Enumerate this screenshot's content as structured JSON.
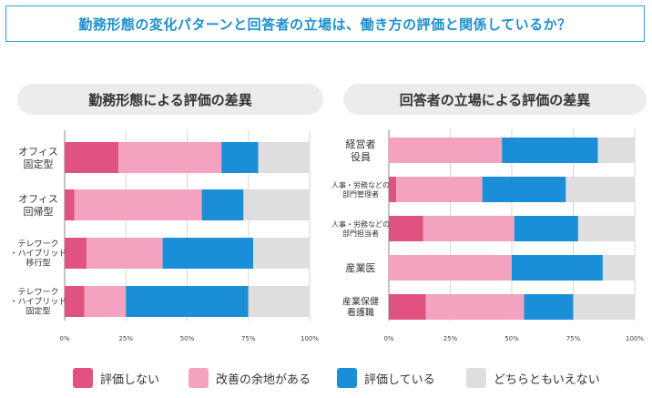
{
  "header": {
    "title": "勤務形態の変化パターンと回答者の立場は、働き方の評価と関係しているか？"
  },
  "colors": {
    "not_evaluate": "#e0527f",
    "room_for_improvement": "#f3a3c0",
    "evaluate": "#1a8fd8",
    "neutral": "#dedede"
  },
  "legend": [
    {
      "label": "評価しない",
      "color": "#e0527f"
    },
    {
      "label": "改善の余地がある",
      "color": "#f3a3c0"
    },
    {
      "label": "評価している",
      "color": "#1a8fd8"
    },
    {
      "label": "どちらともいえない",
      "color": "#dedede"
    }
  ],
  "chart_data": [
    {
      "type": "bar",
      "orientation": "horizontal-stacked-100",
      "title": "勤務形態による評価の差異",
      "categories": [
        [
          "オフィス",
          "固定型"
        ],
        [
          "オフィス",
          "回帰型"
        ],
        [
          "テレワーク",
          "・ハイブリッド",
          "移行型"
        ],
        [
          "テレワーク",
          "・ハイブリッド",
          "固定型"
        ]
      ],
      "series": [
        {
          "name": "評価しない",
          "values": [
            22,
            4,
            9,
            8
          ]
        },
        {
          "name": "改善の余地がある",
          "values": [
            42,
            52,
            31,
            17
          ]
        },
        {
          "name": "評価している",
          "values": [
            15,
            17,
            37,
            50
          ]
        },
        {
          "name": "どちらともいえない",
          "values": [
            21,
            27,
            23,
            25
          ]
        }
      ],
      "xticks": [
        "0%",
        "25%",
        "50%",
        "75%",
        "100%"
      ],
      "xlim": [
        0,
        100
      ]
    },
    {
      "type": "bar",
      "orientation": "horizontal-stacked-100",
      "title": "回答者の立場による評価の差異",
      "categories": [
        [
          "経営者",
          "役員"
        ],
        [
          "人事・労務などの",
          "部門管理者"
        ],
        [
          "人事・労務などの",
          "部門担当者"
        ],
        [
          "産業医"
        ],
        [
          "産業保健",
          "看護職"
        ]
      ],
      "series": [
        {
          "name": "評価しない",
          "values": [
            0,
            3,
            14,
            0,
            15
          ]
        },
        {
          "name": "改善の余地がある",
          "values": [
            46,
            35,
            37,
            50,
            40
          ]
        },
        {
          "name": "評価している",
          "values": [
            39,
            34,
            26,
            37,
            20
          ]
        },
        {
          "name": "どちらともいえない",
          "values": [
            15,
            28,
            23,
            13,
            25
          ]
        }
      ],
      "xticks": [
        "0%",
        "25%",
        "50%",
        "75%",
        "100%"
      ],
      "xlim": [
        0,
        100
      ]
    }
  ]
}
